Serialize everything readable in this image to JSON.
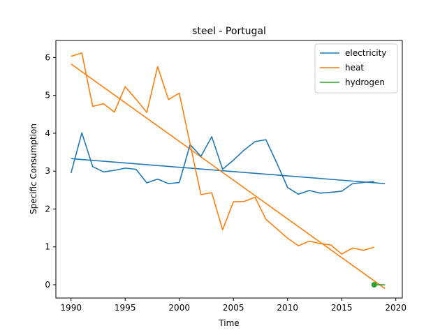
{
  "chart_data": {
    "type": "line",
    "title": "steel - Portugal",
    "xlabel": "Time",
    "ylabel": "Specific Consumption",
    "xlim": [
      1988.6,
      2020.6
    ],
    "ylim": [
      -0.35,
      6.45
    ],
    "xticks": [
      1990,
      1995,
      2000,
      2005,
      2010,
      2015,
      2020
    ],
    "yticks": [
      0,
      1,
      2,
      3,
      4,
      5,
      6
    ],
    "grid": false,
    "legend_position": "top-right",
    "series": [
      {
        "name": "electricity",
        "color": "#1f77b4",
        "x": [
          1990,
          1991,
          1992,
          1993,
          1994,
          1995,
          1996,
          1997,
          1998,
          1999,
          2000,
          2001,
          2002,
          2003,
          2004,
          2005,
          2006,
          2007,
          2008,
          2009,
          2010,
          2011,
          2012,
          2013,
          2014,
          2015,
          2016,
          2017,
          2018
        ],
        "values": [
          2.95,
          4.01,
          3.12,
          2.98,
          3.02,
          3.08,
          3.05,
          2.69,
          2.79,
          2.67,
          2.7,
          3.7,
          3.39,
          3.91,
          3.05,
          3.29,
          3.56,
          3.78,
          3.83,
          3.22,
          2.57,
          2.39,
          2.49,
          2.42,
          2.44,
          2.47,
          2.67,
          2.7,
          2.73
        ],
        "trend": {
          "x": [
            1990,
            2019
          ],
          "values": [
            3.33,
            2.67
          ]
        }
      },
      {
        "name": "heat",
        "color": "#ff7f0e",
        "x": [
          1990,
          1991,
          1992,
          1993,
          1994,
          1995,
          1996,
          1997,
          1998,
          1999,
          2000,
          2001,
          2002,
          2003,
          2004,
          2005,
          2006,
          2007,
          2008,
          2009,
          2010,
          2011,
          2012,
          2013,
          2014,
          2015,
          2016,
          2017,
          2018
        ],
        "values": [
          6.03,
          6.12,
          4.71,
          4.78,
          4.56,
          5.23,
          4.9,
          4.55,
          5.76,
          4.89,
          5.06,
          3.72,
          2.38,
          2.43,
          1.45,
          2.19,
          2.2,
          2.31,
          1.73,
          1.48,
          1.23,
          1.03,
          1.15,
          1.09,
          1.05,
          0.81,
          0.97,
          0.91,
          0.99
        ],
        "trend": {
          "x": [
            1990,
            2019
          ],
          "values": [
            5.83,
            -0.1
          ]
        }
      },
      {
        "name": "hydrogen",
        "color": "#2ca02c",
        "x": [
          2018
        ],
        "values": [
          0.0
        ],
        "trend": {
          "x": [
            2018,
            2019
          ],
          "values": [
            0.0,
            0.0
          ]
        }
      }
    ]
  }
}
